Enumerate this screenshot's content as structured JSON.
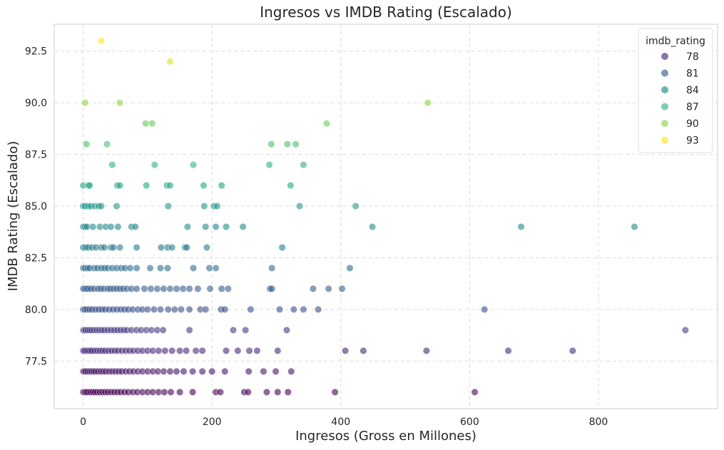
{
  "chart_data": {
    "type": "scatter",
    "title": "Ingresos vs IMDB Rating (Escalado)",
    "xlabel": "Ingresos (Gross en Millones)",
    "ylabel": "IMDB Rating (Escalado)",
    "xlim": [
      -45,
      985
    ],
    "ylim": [
      75.2,
      93.8
    ],
    "xticks": [
      0,
      200,
      400,
      600,
      800
    ],
    "yticks": [
      77.5,
      80.0,
      82.5,
      85.0,
      87.5,
      90.0,
      92.5
    ],
    "ytick_labels": [
      "77.5",
      "80.0",
      "82.5",
      "85.0",
      "87.5",
      "90.0",
      "92.5"
    ],
    "grid": true,
    "legend_position": "top-right",
    "legend": {
      "title": "imdb_rating",
      "entries": [
        "78",
        "81",
        "84",
        "87",
        "90",
        "93"
      ]
    },
    "colormap": "viridis",
    "color_range": [
      76,
      93
    ],
    "points": [
      [
        28,
        93
      ],
      [
        135,
        92
      ],
      [
        3,
        90
      ],
      [
        57,
        90
      ],
      [
        535,
        90
      ],
      [
        97,
        89
      ],
      [
        107,
        89
      ],
      [
        378,
        89
      ],
      [
        5,
        88
      ],
      [
        37,
        88
      ],
      [
        292,
        88
      ],
      [
        317,
        88
      ],
      [
        330,
        88
      ],
      [
        45,
        87
      ],
      [
        111,
        87
      ],
      [
        171,
        87
      ],
      [
        289,
        87
      ],
      [
        342,
        87
      ],
      [
        0,
        86
      ],
      [
        8,
        86
      ],
      [
        10,
        86
      ],
      [
        53,
        86
      ],
      [
        57,
        86
      ],
      [
        98,
        86
      ],
      [
        130,
        86
      ],
      [
        135,
        86
      ],
      [
        187,
        86
      ],
      [
        215,
        86
      ],
      [
        322,
        86
      ],
      [
        0,
        85
      ],
      [
        3,
        85
      ],
      [
        8,
        85
      ],
      [
        12,
        85
      ],
      [
        18,
        85
      ],
      [
        24,
        85
      ],
      [
        28,
        85
      ],
      [
        52,
        85
      ],
      [
        132,
        85
      ],
      [
        188,
        85
      ],
      [
        203,
        85
      ],
      [
        208,
        85
      ],
      [
        336,
        85
      ],
      [
        423,
        85
      ],
      [
        0,
        84
      ],
      [
        3,
        84
      ],
      [
        6,
        84
      ],
      [
        15,
        84
      ],
      [
        26,
        84
      ],
      [
        35,
        84
      ],
      [
        43,
        84
      ],
      [
        54,
        84
      ],
      [
        75,
        84
      ],
      [
        81,
        84
      ],
      [
        162,
        84
      ],
      [
        190,
        84
      ],
      [
        206,
        84
      ],
      [
        222,
        84
      ],
      [
        248,
        84
      ],
      [
        449,
        84
      ],
      [
        680,
        84
      ],
      [
        856,
        84
      ],
      [
        0,
        83
      ],
      [
        4,
        83
      ],
      [
        8,
        83
      ],
      [
        14,
        83
      ],
      [
        20,
        83
      ],
      [
        28,
        83
      ],
      [
        33,
        83
      ],
      [
        43,
        83
      ],
      [
        47,
        83
      ],
      [
        57,
        83
      ],
      [
        83,
        83
      ],
      [
        121,
        83
      ],
      [
        131,
        83
      ],
      [
        138,
        83
      ],
      [
        158,
        83
      ],
      [
        161,
        83
      ],
      [
        192,
        83
      ],
      [
        309,
        83
      ],
      [
        0,
        82
      ],
      [
        3,
        82
      ],
      [
        7,
        82
      ],
      [
        10,
        82
      ],
      [
        17,
        82
      ],
      [
        22,
        82
      ],
      [
        28,
        82
      ],
      [
        33,
        82
      ],
      [
        38,
        82
      ],
      [
        45,
        82
      ],
      [
        52,
        82
      ],
      [
        59,
        82
      ],
      [
        65,
        82
      ],
      [
        73,
        82
      ],
      [
        83,
        82
      ],
      [
        104,
        82
      ],
      [
        120,
        82
      ],
      [
        131,
        82
      ],
      [
        171,
        82
      ],
      [
        196,
        82
      ],
      [
        206,
        82
      ],
      [
        293,
        82
      ],
      [
        414,
        82
      ],
      [
        0,
        81
      ],
      [
        2,
        81
      ],
      [
        5,
        81
      ],
      [
        8,
        81
      ],
      [
        12,
        81
      ],
      [
        17,
        81
      ],
      [
        23,
        81
      ],
      [
        27,
        81
      ],
      [
        32,
        81
      ],
      [
        38,
        81
      ],
      [
        42,
        81
      ],
      [
        47,
        81
      ],
      [
        52,
        81
      ],
      [
        57,
        81
      ],
      [
        62,
        81
      ],
      [
        68,
        81
      ],
      [
        75,
        81
      ],
      [
        83,
        81
      ],
      [
        95,
        81
      ],
      [
        105,
        81
      ],
      [
        115,
        81
      ],
      [
        125,
        81
      ],
      [
        135,
        81
      ],
      [
        145,
        81
      ],
      [
        155,
        81
      ],
      [
        165,
        81
      ],
      [
        178,
        81
      ],
      [
        197,
        81
      ],
      [
        215,
        81
      ],
      [
        225,
        81
      ],
      [
        290,
        81
      ],
      [
        293,
        81
      ],
      [
        357,
        81
      ],
      [
        381,
        81
      ],
      [
        402,
        81
      ],
      [
        0,
        80
      ],
      [
        3,
        80
      ],
      [
        6,
        80
      ],
      [
        10,
        80
      ],
      [
        14,
        80
      ],
      [
        19,
        80
      ],
      [
        24,
        80
      ],
      [
        29,
        80
      ],
      [
        34,
        80
      ],
      [
        40,
        80
      ],
      [
        46,
        80
      ],
      [
        52,
        80
      ],
      [
        58,
        80
      ],
      [
        64,
        80
      ],
      [
        70,
        80
      ],
      [
        77,
        80
      ],
      [
        85,
        80
      ],
      [
        92,
        80
      ],
      [
        100,
        80
      ],
      [
        110,
        80
      ],
      [
        120,
        80
      ],
      [
        132,
        80
      ],
      [
        142,
        80
      ],
      [
        152,
        80
      ],
      [
        165,
        80
      ],
      [
        182,
        80
      ],
      [
        190,
        80
      ],
      [
        214,
        80
      ],
      [
        220,
        80
      ],
      [
        260,
        80
      ],
      [
        305,
        80
      ],
      [
        327,
        80
      ],
      [
        342,
        80
      ],
      [
        365,
        80
      ],
      [
        623,
        80
      ],
      [
        0,
        79
      ],
      [
        2,
        79
      ],
      [
        4,
        79
      ],
      [
        7,
        79
      ],
      [
        10,
        79
      ],
      [
        13,
        79
      ],
      [
        17,
        79
      ],
      [
        21,
        79
      ],
      [
        25,
        79
      ],
      [
        29,
        79
      ],
      [
        33,
        79
      ],
      [
        38,
        79
      ],
      [
        43,
        79
      ],
      [
        48,
        79
      ],
      [
        53,
        79
      ],
      [
        58,
        79
      ],
      [
        63,
        79
      ],
      [
        68,
        79
      ],
      [
        75,
        79
      ],
      [
        83,
        79
      ],
      [
        90,
        79
      ],
      [
        98,
        79
      ],
      [
        106,
        79
      ],
      [
        115,
        79
      ],
      [
        124,
        79
      ],
      [
        165,
        79
      ],
      [
        233,
        79
      ],
      [
        252,
        79
      ],
      [
        316,
        79
      ],
      [
        935,
        79
      ],
      [
        0,
        78
      ],
      [
        2,
        78
      ],
      [
        5,
        78
      ],
      [
        8,
        78
      ],
      [
        11,
        78
      ],
      [
        14,
        78
      ],
      [
        18,
        78
      ],
      [
        22,
        78
      ],
      [
        26,
        78
      ],
      [
        30,
        78
      ],
      [
        34,
        78
      ],
      [
        39,
        78
      ],
      [
        44,
        78
      ],
      [
        49,
        78
      ],
      [
        54,
        78
      ],
      [
        60,
        78
      ],
      [
        66,
        78
      ],
      [
        72,
        78
      ],
      [
        78,
        78
      ],
      [
        85,
        78
      ],
      [
        92,
        78
      ],
      [
        100,
        78
      ],
      [
        108,
        78
      ],
      [
        117,
        78
      ],
      [
        127,
        78
      ],
      [
        138,
        78
      ],
      [
        150,
        78
      ],
      [
        160,
        78
      ],
      [
        175,
        78
      ],
      [
        185,
        78
      ],
      [
        222,
        78
      ],
      [
        240,
        78
      ],
      [
        258,
        78
      ],
      [
        270,
        78
      ],
      [
        302,
        78
      ],
      [
        407,
        78
      ],
      [
        435,
        78
      ],
      [
        533,
        78
      ],
      [
        660,
        78
      ],
      [
        760,
        78
      ],
      [
        0,
        77
      ],
      [
        2,
        77
      ],
      [
        4,
        77
      ],
      [
        7,
        77
      ],
      [
        10,
        77
      ],
      [
        13,
        77
      ],
      [
        16,
        77
      ],
      [
        19,
        77
      ],
      [
        23,
        77
      ],
      [
        27,
        77
      ],
      [
        31,
        77
      ],
      [
        35,
        77
      ],
      [
        40,
        77
      ],
      [
        45,
        77
      ],
      [
        50,
        77
      ],
      [
        55,
        77
      ],
      [
        60,
        77
      ],
      [
        66,
        77
      ],
      [
        72,
        77
      ],
      [
        78,
        77
      ],
      [
        85,
        77
      ],
      [
        92,
        77
      ],
      [
        100,
        77
      ],
      [
        108,
        77
      ],
      [
        116,
        77
      ],
      [
        125,
        77
      ],
      [
        135,
        77
      ],
      [
        145,
        77
      ],
      [
        156,
        77
      ],
      [
        170,
        77
      ],
      [
        185,
        77
      ],
      [
        200,
        77
      ],
      [
        220,
        77
      ],
      [
        257,
        77
      ],
      [
        280,
        77
      ],
      [
        299,
        77
      ],
      [
        323,
        77
      ],
      [
        0,
        76
      ],
      [
        2,
        76
      ],
      [
        4,
        76
      ],
      [
        6,
        76
      ],
      [
        9,
        76
      ],
      [
        12,
        76
      ],
      [
        15,
        76
      ],
      [
        18,
        76
      ],
      [
        22,
        76
      ],
      [
        26,
        76
      ],
      [
        30,
        76
      ],
      [
        34,
        76
      ],
      [
        38,
        76
      ],
      [
        43,
        76
      ],
      [
        48,
        76
      ],
      [
        53,
        76
      ],
      [
        58,
        76
      ],
      [
        64,
        76
      ],
      [
        70,
        76
      ],
      [
        77,
        76
      ],
      [
        84,
        76
      ],
      [
        92,
        76
      ],
      [
        100,
        76
      ],
      [
        108,
        76
      ],
      [
        117,
        76
      ],
      [
        126,
        76
      ],
      [
        136,
        76
      ],
      [
        150,
        76
      ],
      [
        170,
        76
      ],
      [
        206,
        76
      ],
      [
        213,
        76
      ],
      [
        250,
        76
      ],
      [
        256,
        76
      ],
      [
        285,
        76
      ],
      [
        302,
        76
      ],
      [
        318,
        76
      ],
      [
        391,
        76
      ],
      [
        608,
        76
      ]
    ]
  }
}
